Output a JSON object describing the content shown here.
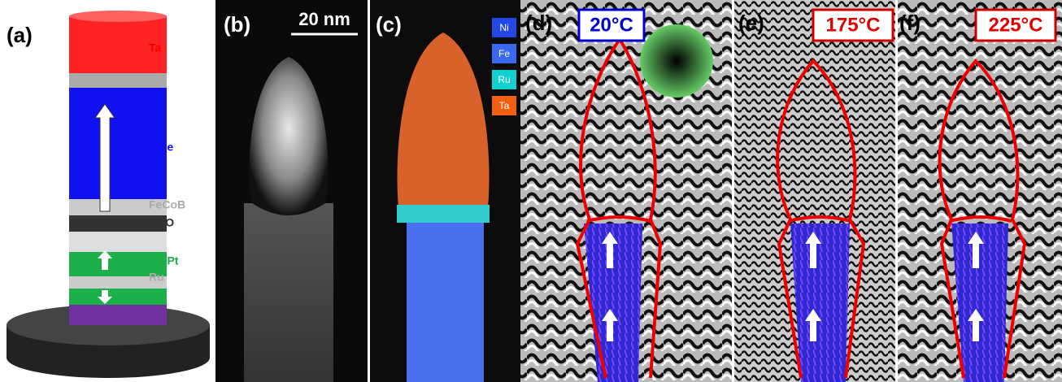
{
  "panel_a": {
    "label": "(a)",
    "layers": [
      "Ta",
      "Ru",
      "NiFe",
      "FeCoB",
      "MgO",
      "Co/Pt",
      "Ru",
      "Pt"
    ]
  },
  "panel_b": {
    "label": "(b)",
    "scale_bar": "20 nm"
  },
  "panel_c": {
    "label": "(c)",
    "legend": [
      "Ni",
      "Fe",
      "Ru",
      "Ta"
    ]
  },
  "panel_d": {
    "label": "(d)",
    "temperature": "20°C"
  },
  "panel_e": {
    "label": "(e)",
    "temperature": "175°C"
  },
  "panel_f": {
    "label": "(f)",
    "temperature": "225°C"
  }
}
